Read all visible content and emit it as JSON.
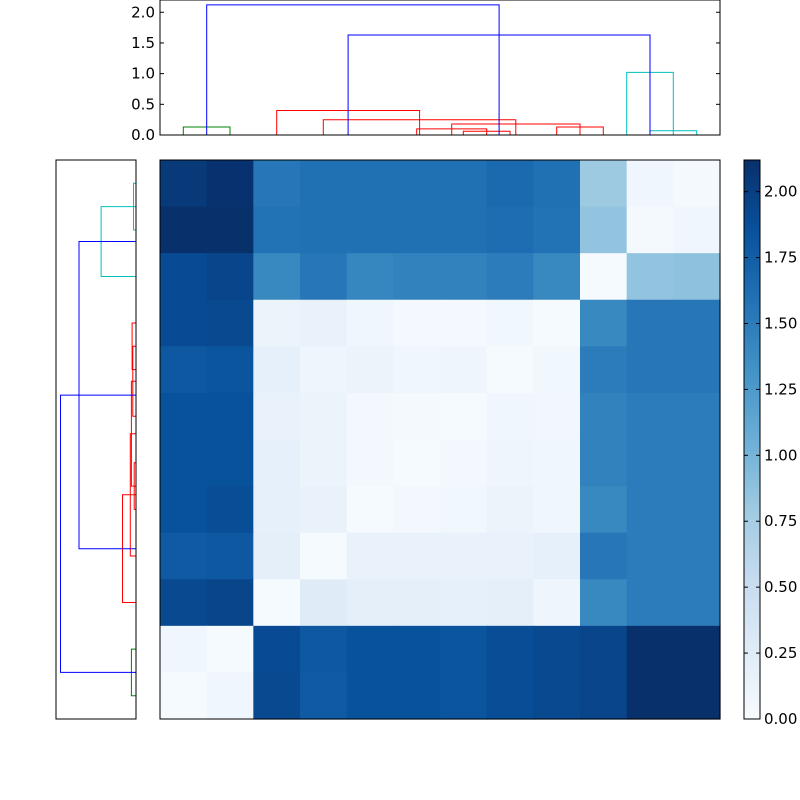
{
  "chart_data": [
    {
      "type": "dendrogram",
      "orientation": "top",
      "ylim": [
        0,
        2.2
      ],
      "yticks": [
        "0.0",
        "0.5",
        "1.0",
        "1.5",
        "2.0"
      ],
      "ytick_values": [
        0,
        0.5,
        1.0,
        1.5,
        2.0
      ],
      "leaf_count": 12,
      "links": [
        {
          "left": 0,
          "right": 1,
          "height": 0.13,
          "color": "#008000"
        },
        {
          "left": 6,
          "right": 7,
          "height": 0.06,
          "color": "#ff0000"
        },
        {
          "left": 5,
          "right": 6.5,
          "height": 0.1,
          "color": "#ff0000"
        },
        {
          "left": 8,
          "right": 9,
          "height": 0.13,
          "color": "#ff0000"
        },
        {
          "left": 5.75,
          "right": 8.5,
          "height": 0.18,
          "color": "#ff0000"
        },
        {
          "left": 3,
          "right": 7.125,
          "height": 0.25,
          "color": "#ff0000"
        },
        {
          "left": 2,
          "right": 5.0625,
          "height": 0.4,
          "color": "#ff0000"
        },
        {
          "left": 10,
          "right": 11,
          "height": 0.07,
          "color": "#00bfbf"
        },
        {
          "left": 9.5,
          "right": 10.5,
          "height": 1.02,
          "color": "#00bfbf"
        },
        {
          "left": 3.53125,
          "right": 10,
          "height": 1.63,
          "color": "#0000ff"
        },
        {
          "left": 0.5,
          "right": 6.765625,
          "height": 2.12,
          "color": "#0000ff"
        }
      ]
    },
    {
      "type": "dendrogram",
      "orientation": "left",
      "leaf_count": 12,
      "links": [
        {
          "left": 0,
          "right": 1,
          "height": 0.07,
          "color": "#00bfbf"
        },
        {
          "left": 0.5,
          "right": 2,
          "height": 0.98,
          "color": "#00bfbf"
        },
        {
          "left": 3,
          "right": 4,
          "height": 0.11,
          "color": "#ff0000"
        },
        {
          "left": 3.5,
          "right": 5,
          "height": 0.09,
          "color": "#ff0000"
        },
        {
          "left": 6,
          "right": 7,
          "height": 0.05,
          "color": "#ff0000"
        },
        {
          "left": 4.25,
          "right": 6.5,
          "height": 0.13,
          "color": "#ff0000"
        },
        {
          "left": 5.375,
          "right": 8,
          "height": 0.16,
          "color": "#ff0000"
        },
        {
          "left": 6.6875,
          "right": 9,
          "height": 0.38,
          "color": "#ff0000"
        },
        {
          "left": 1.25,
          "right": 7.84375,
          "height": 1.6,
          "color": "#0000ff"
        },
        {
          "left": 10,
          "right": 11,
          "height": 0.13,
          "color": "#008000"
        },
        {
          "left": 4.546875,
          "right": 10.5,
          "height": 2.12,
          "color": "#0000ff"
        }
      ]
    },
    {
      "type": "heatmap",
      "rows": 12,
      "cols": 12,
      "values": [
        [
          2.05,
          2.1,
          1.55,
          1.6,
          1.6,
          1.6,
          1.6,
          1.65,
          1.6,
          0.8,
          0.08,
          0.03
        ],
        [
          2.12,
          2.15,
          1.58,
          1.6,
          1.6,
          1.6,
          1.6,
          1.62,
          1.58,
          0.85,
          0.03,
          0.08
        ],
        [
          1.9,
          1.95,
          1.4,
          1.55,
          1.42,
          1.45,
          1.45,
          1.5,
          1.4,
          0.02,
          0.85,
          0.88
        ],
        [
          1.9,
          1.92,
          0.12,
          0.15,
          0.08,
          0.04,
          0.04,
          0.07,
          0.02,
          1.4,
          1.55,
          1.55
        ],
        [
          1.8,
          1.82,
          0.18,
          0.1,
          0.12,
          0.08,
          0.1,
          0.02,
          0.07,
          1.5,
          1.55,
          1.55
        ],
        [
          1.85,
          1.85,
          0.15,
          0.12,
          0.05,
          0.03,
          0.02,
          0.08,
          0.06,
          1.45,
          1.5,
          1.5
        ],
        [
          1.85,
          1.85,
          0.18,
          0.12,
          0.05,
          0.02,
          0.05,
          0.1,
          0.08,
          1.45,
          1.5,
          1.5
        ],
        [
          1.85,
          1.88,
          0.18,
          0.15,
          0.02,
          0.05,
          0.07,
          0.12,
          0.09,
          1.4,
          1.5,
          1.5
        ],
        [
          1.78,
          1.8,
          0.2,
          0.02,
          0.15,
          0.15,
          0.15,
          0.15,
          0.18,
          1.55,
          1.5,
          1.5
        ],
        [
          1.92,
          1.95,
          0.02,
          0.25,
          0.2,
          0.2,
          0.18,
          0.2,
          0.1,
          1.4,
          1.5,
          1.5
        ],
        [
          0.08,
          0.02,
          1.9,
          1.8,
          1.85,
          1.85,
          1.82,
          1.88,
          1.92,
          1.95,
          2.12,
          2.15
        ],
        [
          0.02,
          0.08,
          1.92,
          1.78,
          1.85,
          1.85,
          1.82,
          1.88,
          1.92,
          1.95,
          2.12,
          2.15
        ]
      ],
      "colormap": "Blues",
      "vmin": 0,
      "vmax": 2.12
    },
    {
      "type": "colorbar",
      "ticks": [
        "0.00",
        "0.25",
        "0.50",
        "0.75",
        "1.00",
        "1.25",
        "1.50",
        "1.75",
        "2.00"
      ],
      "tick_values": [
        0,
        0.25,
        0.5,
        0.75,
        1.0,
        1.25,
        1.5,
        1.75,
        2.0
      ],
      "vmin": 0,
      "vmax": 2.12
    }
  ]
}
